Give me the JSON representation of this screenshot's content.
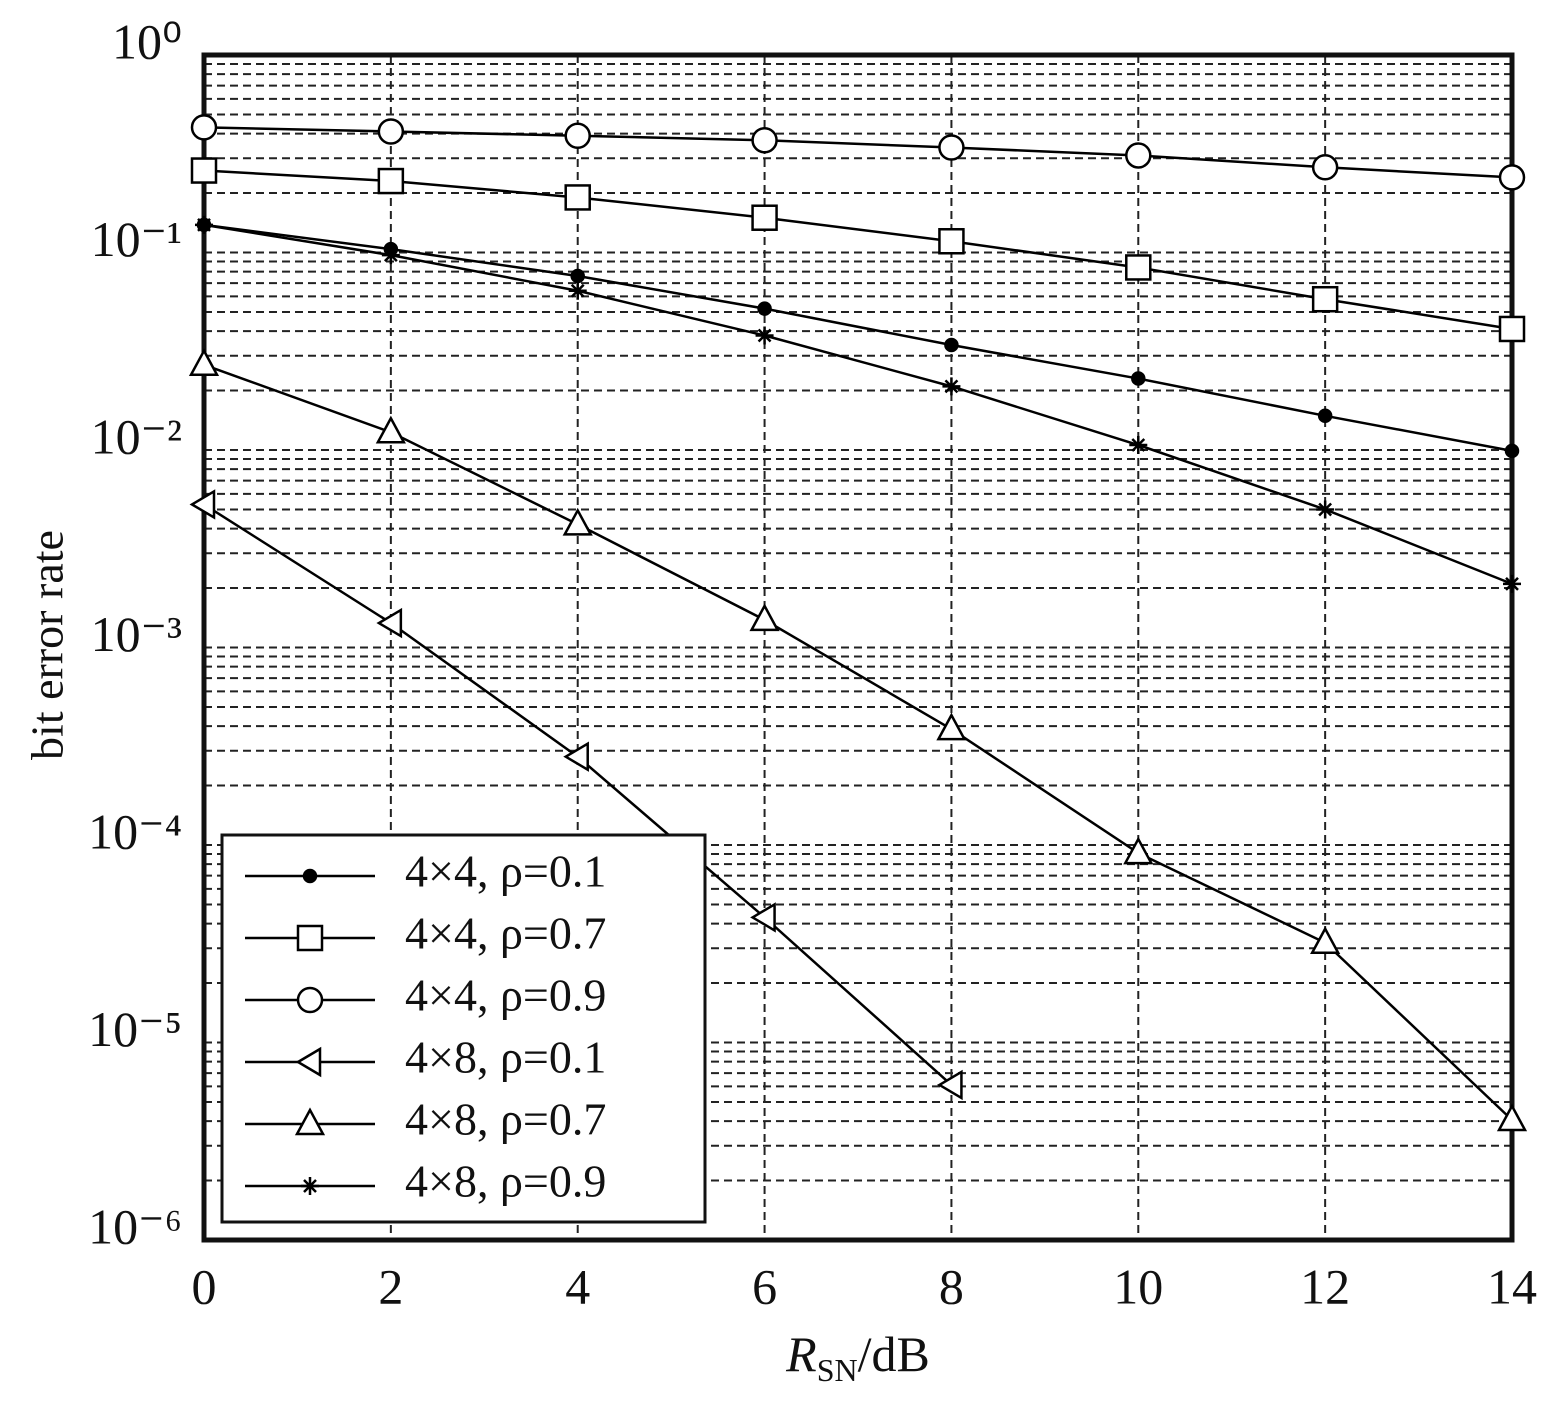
{
  "chart_data": {
    "type": "line",
    "xlabel": [
      "R",
      "SN",
      "/dB"
    ],
    "ylabel": "bit error rate",
    "x": [
      0,
      2,
      4,
      6,
      8,
      10,
      12,
      14
    ],
    "xlim": [
      0,
      14
    ],
    "xticks": [
      0,
      2,
      4,
      6,
      8,
      10,
      12,
      14
    ],
    "ylim": [
      1e-06,
      1
    ],
    "log_y": true,
    "grid": true,
    "minor_grid": true,
    "yticks": [
      {
        "value": 1,
        "label": "10⁰"
      },
      {
        "value": 0.1,
        "label": "10⁻¹"
      },
      {
        "value": 0.01,
        "label": "10⁻²"
      },
      {
        "value": 0.001,
        "label": "10⁻³"
      },
      {
        "value": 0.0001,
        "label": "10⁻⁴"
      },
      {
        "value": 1e-05,
        "label": "10⁻⁵"
      },
      {
        "value": 1e-06,
        "label": "10⁻⁶"
      }
    ],
    "legend": "lower left",
    "series": [
      {
        "name": "4×4, ρ=0.1",
        "color": "#000000",
        "marker": "dot",
        "values": [
          0.138,
          0.104,
          0.076,
          0.052,
          0.034,
          0.023,
          0.0149,
          0.0099
        ]
      },
      {
        "name": "4×4, ρ=0.7",
        "color": "#000000",
        "marker": "square",
        "values": [
          0.26,
          0.23,
          0.19,
          0.15,
          0.114,
          0.084,
          0.058,
          0.041
        ]
      },
      {
        "name": "4×4, ρ=0.9",
        "color": "#000000",
        "marker": "circle",
        "values": [
          0.43,
          0.41,
          0.39,
          0.37,
          0.34,
          0.31,
          0.27,
          0.24
        ]
      },
      {
        "name": "4×8, ρ=0.1",
        "color": "#000000",
        "marker": "triangle-left",
        "values": [
          0.0053,
          0.00133,
          0.00028,
          4.3e-05,
          6.1e-06,
          null,
          null,
          null
        ]
      },
      {
        "name": "4×8, ρ=0.7",
        "color": "#000000",
        "marker": "triangle-up",
        "values": [
          0.027,
          0.0123,
          0.0042,
          0.00138,
          0.000386,
          9.1e-05,
          3.2e-05,
          4.05e-06
        ]
      },
      {
        "name": "4×8, ρ=0.9",
        "color": "#000000",
        "marker": "star",
        "values": [
          0.138,
          0.097,
          0.064,
          0.038,
          0.021,
          0.0106,
          0.005,
          0.0021
        ]
      }
    ]
  }
}
